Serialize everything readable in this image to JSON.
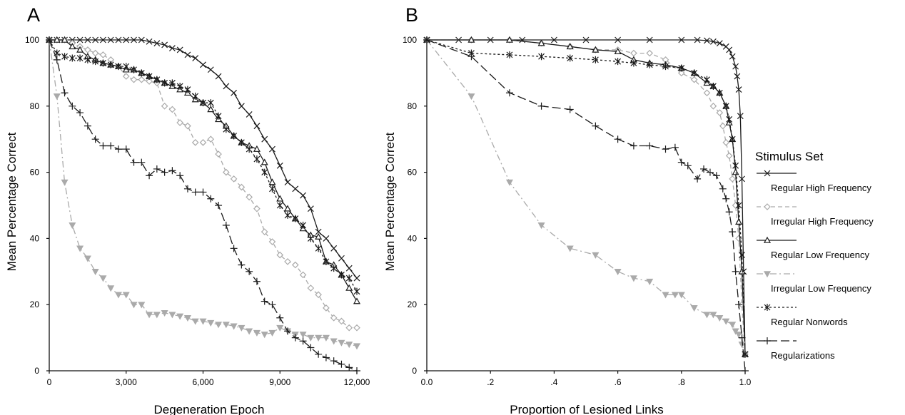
{
  "chart_data": [
    {
      "type": "line",
      "panel_label": "A",
      "xlabel": "Degeneration Epoch",
      "ylabel": "Mean Percentage Correct",
      "xlim": [
        0,
        12000
      ],
      "ylim": [
        0,
        100
      ],
      "xticks": [
        0,
        3000,
        6000,
        9000,
        12000
      ],
      "xtick_labels": [
        "0",
        "3,000",
        "6,000",
        "9,000",
        "12,000"
      ],
      "yticks": [
        0,
        20,
        40,
        60,
        80,
        100
      ],
      "ytick_labels": [
        "0",
        "20",
        "40",
        "60",
        "80",
        "100"
      ],
      "grid": false,
      "series": [
        {
          "name": "Regular High Frequency",
          "x": [
            0,
            300,
            600,
            900,
            1200,
            1500,
            1800,
            2100,
            2400,
            2700,
            3000,
            3300,
            3600,
            3900,
            4200,
            4500,
            4800,
            5100,
            5400,
            5700,
            6000,
            6300,
            6600,
            6900,
            7200,
            7500,
            7800,
            8100,
            8400,
            8700,
            9000,
            9300,
            9600,
            9900,
            10200,
            10500,
            10800,
            11100,
            11400,
            11700,
            12000
          ],
          "y": [
            100,
            100,
            100,
            100,
            100,
            100,
            100,
            100,
            100,
            100,
            100,
            100,
            100,
            99.5,
            99,
            98.5,
            97.5,
            97,
            95.5,
            94.5,
            92.5,
            91,
            89,
            86,
            84,
            80,
            77.5,
            74,
            70,
            67,
            62,
            57,
            55,
            53,
            49,
            42,
            40,
            37,
            34,
            31,
            28
          ]
        },
        {
          "name": "Irregular High Frequency",
          "x": [
            0,
            300,
            600,
            900,
            1200,
            1500,
            1800,
            2100,
            2400,
            2700,
            3000,
            3300,
            3600,
            3900,
            4200,
            4500,
            4800,
            5100,
            5400,
            5700,
            6000,
            6300,
            6600,
            6900,
            7200,
            7500,
            7800,
            8100,
            8400,
            8700,
            9000,
            9300,
            9600,
            9900,
            10200,
            10500,
            10800,
            11100,
            11400,
            11700,
            12000
          ],
          "y": [
            100,
            100,
            100,
            99,
            98,
            97,
            96,
            95.5,
            94,
            92,
            89,
            88,
            88,
            87.5,
            87,
            80,
            79,
            75,
            74,
            69,
            69,
            70,
            65.5,
            60,
            58,
            55.5,
            52.5,
            49,
            42,
            39,
            35,
            33,
            32,
            29,
            25,
            23,
            19,
            16,
            15,
            13,
            13
          ]
        },
        {
          "name": "Regular Low Frequency",
          "x": [
            0,
            300,
            600,
            900,
            1200,
            1500,
            1800,
            2100,
            2400,
            2700,
            3000,
            3300,
            3600,
            3900,
            4200,
            4500,
            4800,
            5100,
            5400,
            5700,
            6000,
            6300,
            6600,
            6900,
            7200,
            7500,
            7800,
            8100,
            8400,
            8700,
            9000,
            9300,
            9600,
            9900,
            10200,
            10500,
            10800,
            11100,
            11400,
            11700,
            12000
          ],
          "y": [
            100,
            100,
            100,
            98,
            97,
            95,
            94,
            93,
            92.5,
            92,
            91,
            91,
            90,
            89,
            88,
            87,
            86,
            85,
            84,
            82,
            81,
            79,
            76,
            74,
            71,
            69,
            68,
            67,
            63,
            57,
            52,
            49,
            46,
            43,
            41,
            40.5,
            33,
            32,
            29,
            25,
            21
          ]
        },
        {
          "name": "Irregular Low Frequency",
          "x": [
            0,
            300,
            600,
            900,
            1200,
            1500,
            1800,
            2100,
            2400,
            2700,
            3000,
            3300,
            3600,
            3900,
            4200,
            4500,
            4800,
            5100,
            5400,
            5700,
            6000,
            6300,
            6600,
            6900,
            7200,
            7500,
            7800,
            8100,
            8400,
            8700,
            9000,
            9300,
            9600,
            9900,
            10200,
            10500,
            10800,
            11100,
            11400,
            11700,
            12000
          ],
          "y": [
            100,
            83,
            57,
            44,
            37,
            34,
            30,
            28,
            25,
            23,
            23,
            20,
            20,
            17,
            17,
            17.5,
            17,
            16.5,
            16,
            15,
            15,
            14.5,
            14,
            14,
            13.5,
            13,
            12,
            11.5,
            11,
            11.5,
            13,
            12,
            11,
            11,
            10,
            10,
            10,
            9,
            8.5,
            8,
            7.5
          ]
        },
        {
          "name": "Regular Nonwords",
          "x": [
            0,
            300,
            600,
            900,
            1200,
            1500,
            1800,
            2100,
            2400,
            2700,
            3000,
            3300,
            3600,
            3900,
            4200,
            4500,
            4800,
            5100,
            5400,
            5700,
            6000,
            6300,
            6600,
            6900,
            7200,
            7500,
            7800,
            8100,
            8400,
            8700,
            9000,
            9300,
            9600,
            9900,
            10200,
            10500,
            10800,
            11100,
            11400,
            11700,
            12000
          ],
          "y": [
            100,
            96,
            95,
            94.5,
            94.5,
            94,
            93.5,
            93,
            92.5,
            92,
            92,
            91,
            90,
            89,
            88,
            87,
            87,
            86,
            85,
            83,
            81,
            81,
            77,
            73,
            71,
            69,
            67,
            64,
            60,
            55,
            50,
            47,
            46,
            44,
            40,
            37,
            33,
            31,
            29,
            28,
            24
          ]
        },
        {
          "name": "Regularizations",
          "x": [
            0,
            300,
            600,
            900,
            1200,
            1500,
            1800,
            2100,
            2400,
            2700,
            3000,
            3300,
            3600,
            3900,
            4200,
            4500,
            4800,
            5100,
            5400,
            5700,
            6000,
            6300,
            6600,
            6900,
            7200,
            7500,
            7800,
            8100,
            8400,
            8700,
            9000,
            9300,
            9600,
            9900,
            10200,
            10500,
            10800,
            11100,
            11400,
            11700,
            12000
          ],
          "y": [
            100,
            94,
            84,
            80,
            78,
            74,
            70,
            68,
            68,
            67,
            67,
            63,
            63,
            59,
            61,
            60,
            60.5,
            59,
            55,
            54,
            54,
            52,
            50,
            44,
            37,
            32,
            30,
            27,
            21,
            20,
            16,
            12,
            10,
            9,
            7,
            5,
            4,
            3,
            2,
            1,
            0
          ]
        }
      ]
    },
    {
      "type": "line",
      "panel_label": "B",
      "xlabel": "Proportion of Lesioned Links",
      "ylabel": "Mean Percentage Correct",
      "xlim": [
        0,
        1
      ],
      "ylim": [
        0,
        100
      ],
      "xticks": [
        0,
        0.2,
        0.4,
        0.6,
        0.8,
        1.0
      ],
      "xtick_labels": [
        "0.0",
        ".2",
        ".4",
        ".6",
        ".8",
        "1.0"
      ],
      "yticks": [
        0,
        20,
        40,
        60,
        80,
        100
      ],
      "ytick_labels": [
        "0",
        "20",
        "40",
        "60",
        "80",
        "100"
      ],
      "grid": false,
      "series": [
        {
          "name": "Regular High Frequency",
          "x": [
            0,
            0.1,
            0.2,
            0.3,
            0.4,
            0.5,
            0.6,
            0.7,
            0.8,
            0.85,
            0.88,
            0.9,
            0.92,
            0.94,
            0.95,
            0.96,
            0.97,
            0.975,
            0.98,
            0.985,
            0.99,
            0.995,
            1.0
          ],
          "y": [
            100,
            100,
            100,
            100,
            100,
            100,
            100,
            100,
            100,
            100,
            99.8,
            99.5,
            99,
            98,
            97,
            95,
            92,
            89,
            85,
            77,
            58,
            30,
            5
          ]
        },
        {
          "name": "Irregular High Frequency",
          "x": [
            0,
            0.14,
            0.26,
            0.36,
            0.45,
            0.53,
            0.6,
            0.65,
            0.7,
            0.75,
            0.8,
            0.84,
            0.88,
            0.9,
            0.92,
            0.93,
            0.94,
            0.95,
            0.96,
            0.97,
            0.98,
            0.99,
            1.0
          ],
          "y": [
            100,
            100,
            100,
            99,
            98,
            97,
            97,
            96,
            96,
            94,
            90,
            88,
            84,
            80,
            78,
            74,
            69,
            65,
            58,
            50,
            40,
            20,
            5
          ]
        },
        {
          "name": "Regular Low Frequency",
          "x": [
            0,
            0.14,
            0.26,
            0.36,
            0.45,
            0.53,
            0.6,
            0.65,
            0.7,
            0.75,
            0.8,
            0.84,
            0.88,
            0.9,
            0.92,
            0.94,
            0.95,
            0.96,
            0.97,
            0.98,
            0.99,
            1.0
          ],
          "y": [
            100,
            100,
            100,
            99,
            98,
            97,
            96.5,
            94,
            93,
            92.5,
            91.5,
            90,
            87,
            86,
            84,
            80,
            75,
            70,
            60,
            45,
            30,
            5
          ]
        },
        {
          "name": "Irregular Low Frequency",
          "x": [
            0,
            0.14,
            0.26,
            0.36,
            0.45,
            0.53,
            0.6,
            0.65,
            0.7,
            0.75,
            0.78,
            0.8,
            0.84,
            0.88,
            0.9,
            0.92,
            0.94,
            0.96,
            0.97,
            0.98,
            0.99,
            1.0
          ],
          "y": [
            100,
            83,
            57,
            44,
            37,
            35,
            30,
            28,
            27,
            23,
            23,
            23,
            19,
            17,
            17,
            16,
            15,
            14,
            12,
            11,
            8,
            5
          ]
        },
        {
          "name": "Regular Nonwords",
          "x": [
            0,
            0.14,
            0.26,
            0.36,
            0.45,
            0.53,
            0.6,
            0.65,
            0.7,
            0.75,
            0.8,
            0.84,
            0.88,
            0.9,
            0.92,
            0.94,
            0.95,
            0.96,
            0.97,
            0.98,
            0.99,
            1.0
          ],
          "y": [
            100,
            96,
            95.5,
            95,
            94.5,
            94,
            93.5,
            93,
            92.5,
            92,
            91.5,
            90,
            88,
            86,
            84,
            80,
            76,
            70,
            62,
            50,
            35,
            5
          ]
        },
        {
          "name": "Regularizations",
          "x": [
            0,
            0.14,
            0.26,
            0.36,
            0.45,
            0.53,
            0.6,
            0.65,
            0.7,
            0.75,
            0.78,
            0.8,
            0.82,
            0.85,
            0.87,
            0.89,
            0.91,
            0.93,
            0.94,
            0.95,
            0.96,
            0.97,
            0.98,
            0.99,
            1.0
          ],
          "y": [
            100,
            95,
            84,
            80,
            79,
            74,
            70,
            68,
            68,
            67,
            67.5,
            63,
            62,
            58,
            61,
            60,
            59,
            55,
            52,
            48,
            42,
            30,
            20,
            10,
            0
          ]
        }
      ]
    }
  ],
  "legend": {
    "title": "Stimulus Set",
    "entries": [
      {
        "name": "Regular High Frequency",
        "color": "#1a1a1a",
        "dash": "solid",
        "marker": "x"
      },
      {
        "name": "Irregular High Frequency",
        "color": "#aaaaaa",
        "dash": "dashed",
        "marker": "diamond"
      },
      {
        "name": "Regular Low Frequency",
        "color": "#1a1a1a",
        "dash": "solid",
        "marker": "triangle"
      },
      {
        "name": "Irregular Low Frequency",
        "color": "#aaaaaa",
        "dash": "dashdot",
        "marker": "down-triangle"
      },
      {
        "name": "Regular Nonwords",
        "color": "#1a1a1a",
        "dash": "dotted",
        "marker": "asterisk"
      },
      {
        "name": "Regularizations",
        "color": "#1a1a1a",
        "dash": "longdash",
        "marker": "plus"
      }
    ]
  }
}
